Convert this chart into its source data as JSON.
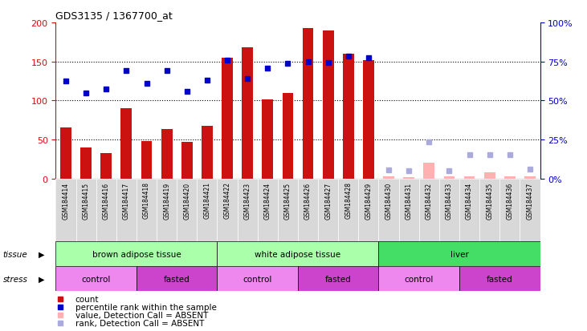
{
  "title": "GDS3135 / 1367700_at",
  "samples": [
    "GSM184414",
    "GSM184415",
    "GSM184416",
    "GSM184417",
    "GSM184418",
    "GSM184419",
    "GSM184420",
    "GSM184421",
    "GSM184422",
    "GSM184423",
    "GSM184424",
    "GSM184425",
    "GSM184426",
    "GSM184427",
    "GSM184428",
    "GSM184429",
    "GSM184430",
    "GSM184431",
    "GSM184432",
    "GSM184433",
    "GSM184434",
    "GSM184435",
    "GSM184436",
    "GSM184437"
  ],
  "counts_present": [
    65,
    40,
    32,
    90,
    48,
    63,
    47,
    67,
    155,
    168,
    101,
    110,
    193,
    190,
    160,
    152,
    null,
    null,
    null,
    null,
    null,
    null,
    null,
    null
  ],
  "counts_absent": [
    null,
    null,
    null,
    null,
    null,
    null,
    null,
    null,
    null,
    null,
    null,
    null,
    null,
    null,
    null,
    null,
    3,
    2,
    20,
    3,
    3,
    8,
    3,
    3
  ],
  "ranks_present": [
    125,
    110,
    115,
    138,
    122,
    138,
    112,
    126,
    152,
    128,
    141,
    148,
    150,
    149,
    157,
    155,
    null,
    null,
    null,
    null,
    null,
    null,
    null,
    null
  ],
  "ranks_absent": [
    null,
    null,
    null,
    null,
    null,
    null,
    null,
    null,
    null,
    null,
    null,
    null,
    null,
    null,
    null,
    null,
    11,
    10,
    47,
    10,
    30,
    30,
    30,
    12
  ],
  "tissue_groups": [
    {
      "label": "brown adipose tissue",
      "start": 0,
      "end": 8,
      "color": "#aaffaa"
    },
    {
      "label": "white adipose tissue",
      "start": 8,
      "end": 16,
      "color": "#aaffaa"
    },
    {
      "label": "liver",
      "start": 16,
      "end": 24,
      "color": "#44dd66"
    }
  ],
  "stress_groups": [
    {
      "label": "control",
      "start": 0,
      "end": 4,
      "color": "#ee88ee"
    },
    {
      "label": "fasted",
      "start": 4,
      "end": 8,
      "color": "#cc44cc"
    },
    {
      "label": "control",
      "start": 8,
      "end": 12,
      "color": "#ee88ee"
    },
    {
      "label": "fasted",
      "start": 12,
      "end": 16,
      "color": "#cc44cc"
    },
    {
      "label": "control",
      "start": 16,
      "end": 20,
      "color": "#ee88ee"
    },
    {
      "label": "fasted",
      "start": 20,
      "end": 24,
      "color": "#cc44cc"
    }
  ],
  "bar_color": "#cc1111",
  "rank_color": "#0000cc",
  "absent_count_color": "#ffb0b0",
  "absent_rank_color": "#aaaadd",
  "yticks_left": [
    0,
    50,
    100,
    150,
    200
  ],
  "yticks_right_vals": [
    0,
    50,
    100,
    150,
    200
  ],
  "yticks_right_labels": [
    "0%",
    "25%",
    "50%",
    "75%",
    "100%"
  ],
  "xlim": [
    -0.5,
    23.5
  ],
  "ylim": [
    0,
    200
  ]
}
